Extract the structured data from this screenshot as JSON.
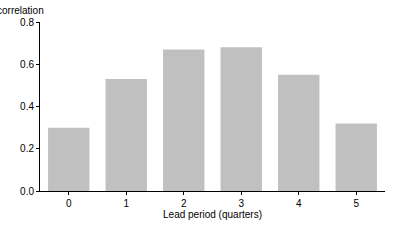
{
  "chart_data": {
    "type": "bar",
    "ylabel": "correlation",
    "xlabel": "Lead period (quarters)",
    "categories": [
      "0",
      "1",
      "2",
      "3",
      "4",
      "5"
    ],
    "values": [
      0.3,
      0.53,
      0.67,
      0.68,
      0.55,
      0.32
    ],
    "color": "#c0c0c0",
    "ylim": [
      0,
      0.8
    ],
    "yticks": [
      {
        "value": 0,
        "label": "0.0"
      },
      0.2,
      0.4,
      0.6,
      0.8
    ],
    "grid": true
  }
}
